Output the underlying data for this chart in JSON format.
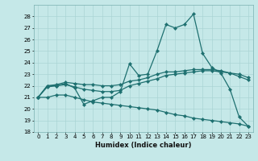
{
  "xlabel": "Humidex (Indice chaleur)",
  "ylim": [
    18,
    29
  ],
  "xlim": [
    -0.5,
    23.5
  ],
  "yticks": [
    18,
    19,
    20,
    21,
    22,
    23,
    24,
    25,
    26,
    27,
    28
  ],
  "xticks": [
    0,
    1,
    2,
    3,
    4,
    5,
    6,
    7,
    8,
    9,
    10,
    11,
    12,
    13,
    14,
    15,
    16,
    17,
    18,
    19,
    20,
    21,
    22,
    23
  ],
  "bg_color": "#c5e8e8",
  "grid_color": "#aad4d4",
  "line_color": "#1e7070",
  "line_width": 0.9,
  "marker_size": 2.2,
  "curve1_y": [
    21.0,
    22.0,
    22.0,
    22.2,
    21.8,
    20.4,
    20.7,
    21.0,
    21.0,
    21.5,
    23.9,
    22.9,
    23.0,
    25.0,
    27.3,
    27.0,
    27.3,
    28.2,
    24.8,
    23.6,
    23.1,
    21.7,
    19.3,
    18.5
  ],
  "curve2_y": [
    21.0,
    21.9,
    22.0,
    22.1,
    21.9,
    21.7,
    21.6,
    21.5,
    21.5,
    21.6,
    22.0,
    22.2,
    22.4,
    22.6,
    22.9,
    23.0,
    23.1,
    23.2,
    23.3,
    23.3,
    23.2,
    23.1,
    22.8,
    22.5
  ],
  "curve3_y": [
    21.0,
    22.0,
    22.1,
    22.3,
    22.2,
    22.1,
    22.1,
    22.0,
    22.0,
    22.1,
    22.4,
    22.5,
    22.7,
    23.0,
    23.2,
    23.2,
    23.3,
    23.4,
    23.4,
    23.4,
    23.3,
    23.1,
    23.0,
    22.7
  ],
  "curve4_y": [
    21.0,
    21.0,
    21.2,
    21.2,
    21.0,
    20.8,
    20.6,
    20.5,
    20.4,
    20.3,
    20.2,
    20.1,
    20.0,
    19.9,
    19.7,
    19.5,
    19.4,
    19.2,
    19.1,
    19.0,
    18.9,
    18.8,
    18.7,
    18.5
  ],
  "tick_fontsize": 5.0,
  "xlabel_fontsize": 6.0
}
